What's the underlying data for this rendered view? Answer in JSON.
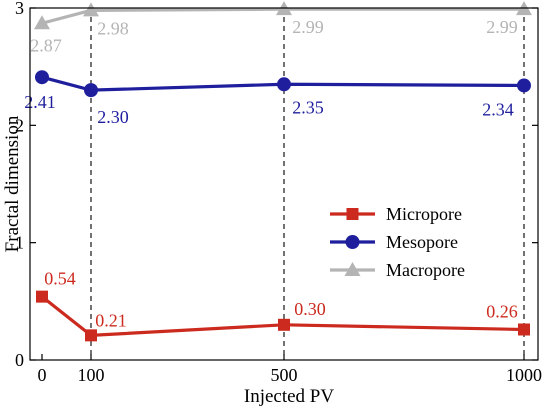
{
  "chart_data": {
    "type": "line",
    "title": "",
    "xlabel": "Injected PV",
    "ylabel": "Fractal dimension",
    "categories": [
      "0",
      "100",
      "500",
      "1000"
    ],
    "x_values": [
      0,
      100,
      500,
      1000
    ],
    "ylim": [
      0,
      3
    ],
    "yticks": [
      0,
      1,
      2,
      3
    ],
    "grid": false,
    "vertical_reference_lines_at": [
      100,
      500,
      1000
    ],
    "legend_position": "right-center",
    "series": [
      {
        "name": "Micropore",
        "values": [
          0.54,
          0.21,
          0.3,
          0.26
        ],
        "labels": [
          "0.54",
          "0.21",
          "0.30",
          "0.26"
        ],
        "color": "#cc2a1e",
        "marker": "square"
      },
      {
        "name": "Mesopore",
        "values": [
          2.41,
          2.3,
          2.35,
          2.34
        ],
        "labels": [
          "2.41",
          "2.30",
          "2.35",
          "2.34"
        ],
        "color": "#1f1f9e",
        "marker": "circle"
      },
      {
        "name": "Macropore",
        "values": [
          2.87,
          2.98,
          2.99,
          2.99
        ],
        "labels": [
          "2.87",
          "2.98",
          "2.99",
          "2.99"
        ],
        "color": "#b4b4b4",
        "marker": "triangle"
      }
    ]
  }
}
